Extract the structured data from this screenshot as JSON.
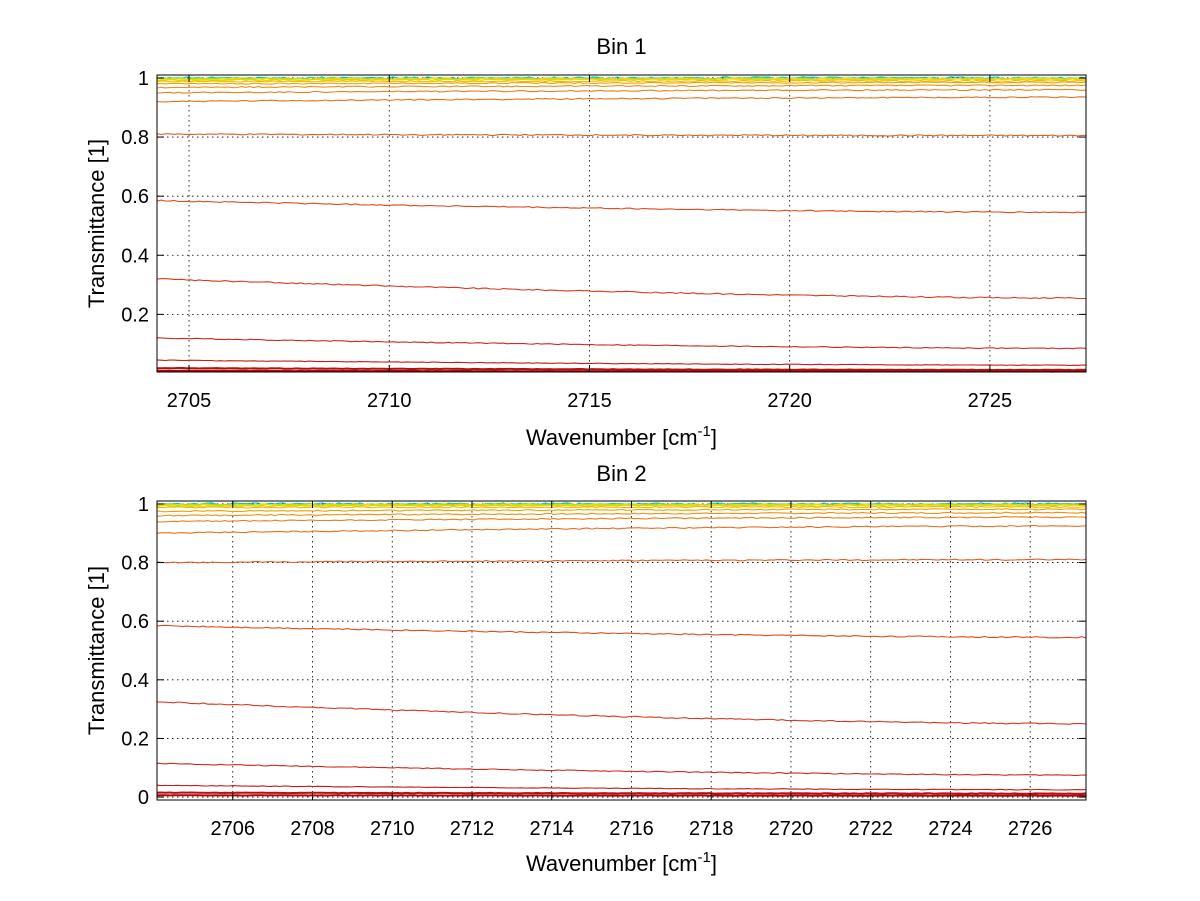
{
  "chart_data": [
    {
      "type": "line",
      "title": "Bin 1",
      "xlabel": "Wavenumber [cm",
      "xlabel_sup": "-1",
      "xlabel_end": "]",
      "ylabel": "Transmittance [1]",
      "xlim": [
        2704.2,
        2727.4
      ],
      "ylim": [
        0.005,
        1.01
      ],
      "xticks": [
        2705,
        2710,
        2715,
        2720,
        2725
      ],
      "xtick_labels": [
        "2705",
        "2710",
        "2715",
        "2720",
        "2725"
      ],
      "yticks": [
        0.2,
        0.4,
        0.6,
        0.8,
        1
      ],
      "ytick_labels": [
        "0.2",
        "0.4",
        "0.6",
        "0.8",
        "1"
      ],
      "grid": true,
      "series": [
        {
          "color": "#00b8e0",
          "start": 1.0,
          "end": 1.0,
          "noise": 0.004
        },
        {
          "color": "#40d080",
          "start": 0.999,
          "end": 0.999,
          "noise": 0.003
        },
        {
          "color": "#a0e000",
          "start": 0.998,
          "end": 0.998,
          "noise": 0.002
        },
        {
          "color": "#d8e800",
          "start": 0.996,
          "end": 0.997,
          "noise": 0.002
        },
        {
          "color": "#f0d000",
          "start": 0.993,
          "end": 0.995,
          "noise": 0.002
        },
        {
          "color": "#f4b800",
          "start": 0.988,
          "end": 0.99,
          "noise": 0.002
        },
        {
          "color": "#f0a000",
          "start": 0.98,
          "end": 0.985,
          "noise": 0.002
        },
        {
          "color": "#ee9010",
          "start": 0.968,
          "end": 0.975,
          "noise": 0.002
        },
        {
          "color": "#ea8018",
          "start": 0.95,
          "end": 0.96,
          "noise": 0.002
        },
        {
          "color": "#e67020",
          "start": 0.92,
          "end": 0.935,
          "noise": 0.002
        },
        {
          "color": "#e25e20",
          "start": 0.81,
          "end": 0.805,
          "noise": 0.002
        },
        {
          "color": "#de4c20",
          "start": 0.585,
          "end": 0.545,
          "noise": 0.002
        },
        {
          "color": "#d83a1e",
          "start": 0.32,
          "end": 0.255,
          "noise": 0.002
        },
        {
          "color": "#d02a1a",
          "start": 0.12,
          "end": 0.085,
          "noise": 0.0015
        },
        {
          "color": "#c41c16",
          "start": 0.045,
          "end": 0.028,
          "noise": 0.001
        },
        {
          "color": "#b81010",
          "start": 0.018,
          "end": 0.012,
          "noise": 0.0008
        },
        {
          "color": "#b00808",
          "start": 0.009,
          "end": 0.007,
          "noise": 0.0005
        }
      ]
    },
    {
      "type": "line",
      "title": "Bin 2",
      "xlabel": "Wavenumber [cm",
      "xlabel_sup": "-1",
      "xlabel_end": "]",
      "ylabel": "Transmittance [1]",
      "xlim": [
        2704.1,
        2727.4
      ],
      "ylim": [
        -0.01,
        1.01
      ],
      "xticks": [
        2706,
        2708,
        2710,
        2712,
        2714,
        2716,
        2718,
        2720,
        2722,
        2724,
        2726
      ],
      "xtick_labels": [
        "2706",
        "2708",
        "2710",
        "2712",
        "2714",
        "2716",
        "2718",
        "2720",
        "2722",
        "2724",
        "2726"
      ],
      "yticks": [
        0,
        0.2,
        0.4,
        0.6,
        0.8,
        1
      ],
      "ytick_labels": [
        "0",
        "0.2",
        "0.4",
        "0.6",
        "0.8",
        "1"
      ],
      "grid": true,
      "series": [
        {
          "color": "#00b8e0",
          "start": 1.0,
          "end": 1.0,
          "noise": 0.004
        },
        {
          "color": "#40d080",
          "start": 0.999,
          "end": 0.999,
          "noise": 0.003
        },
        {
          "color": "#a0e000",
          "start": 0.998,
          "end": 0.998,
          "noise": 0.002
        },
        {
          "color": "#d8e800",
          "start": 0.996,
          "end": 0.997,
          "noise": 0.002
        },
        {
          "color": "#f0d000",
          "start": 0.993,
          "end": 0.995,
          "noise": 0.002
        },
        {
          "color": "#f4b800",
          "start": 0.988,
          "end": 0.99,
          "noise": 0.002
        },
        {
          "color": "#f0a000",
          "start": 0.975,
          "end": 0.982,
          "noise": 0.002
        },
        {
          "color": "#ee9010",
          "start": 0.96,
          "end": 0.97,
          "noise": 0.002
        },
        {
          "color": "#ea8018",
          "start": 0.94,
          "end": 0.955,
          "noise": 0.002
        },
        {
          "color": "#e67020",
          "start": 0.9,
          "end": 0.925,
          "noise": 0.002
        },
        {
          "color": "#e25e20",
          "start": 0.8,
          "end": 0.81,
          "noise": 0.002
        },
        {
          "color": "#de4c20",
          "start": 0.585,
          "end": 0.545,
          "noise": 0.002
        },
        {
          "color": "#d83a1e",
          "start": 0.325,
          "end": 0.25,
          "noise": 0.002
        },
        {
          "color": "#d02a1a",
          "start": 0.115,
          "end": 0.075,
          "noise": 0.0015
        },
        {
          "color": "#c41c16",
          "start": 0.04,
          "end": 0.025,
          "noise": 0.001
        },
        {
          "color": "#b81010",
          "start": 0.015,
          "end": 0.012,
          "noise": 0.0008
        },
        {
          "color": "#b00808",
          "start": 0.006,
          "end": 0.005,
          "noise": 0.0005
        }
      ]
    }
  ]
}
